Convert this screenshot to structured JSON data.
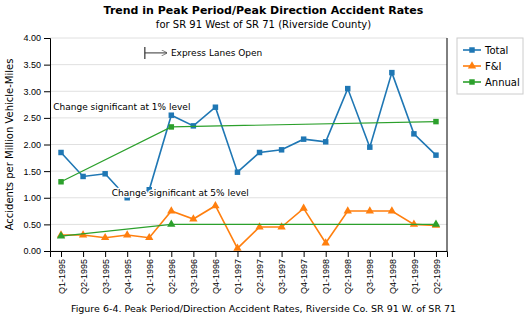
{
  "chart_data": {
    "type": "line",
    "title": "Trend in Peak Period/Peak Direction Accident Rates",
    "subtitle": "for SR 91 West of SR 71 (Riverside County)",
    "ylabel": "Accidents per Million Vehicle-Miles",
    "caption": "Figure 6-4. Peak Period/Direction Accident Rates, Riverside Co. SR 91 W. of SR 71",
    "categories": [
      "Q1-1995",
      "Q2-1995",
      "Q3-1995",
      "Q4-1995",
      "Q1-1996",
      "Q2-1996",
      "Q3-1996",
      "Q4-1996",
      "Q1-1997",
      "Q2-1997",
      "Q3-1997",
      "Q4-1997",
      "Q1-1998",
      "Q2-1998",
      "Q3-1998",
      "Q4-1998",
      "Q1-1999",
      "Q2-1999"
    ],
    "series": [
      {
        "name": "Total",
        "marker": "square",
        "line_style": "solid",
        "values": [
          1.85,
          1.4,
          1.45,
          1.0,
          1.15,
          2.55,
          2.35,
          2.7,
          1.48,
          1.85,
          1.9,
          2.1,
          2.05,
          3.05,
          1.95,
          3.35,
          2.2,
          1.8
        ]
      },
      {
        "name": "F&I",
        "marker": "triangle",
        "line_style": "solid",
        "values": [
          0.3,
          0.3,
          0.25,
          0.3,
          0.25,
          0.75,
          0.6,
          0.85,
          0.05,
          0.45,
          0.45,
          0.8,
          0.15,
          0.75,
          0.75,
          0.75,
          0.5,
          0.48
        ]
      },
      {
        "name": "Annual",
        "marker": "square",
        "line_style": "solid",
        "x": [
          "Q1-1995",
          "Q2-1996",
          "Q2-1999"
        ],
        "values": [
          1.3,
          2.33,
          2.43
        ]
      },
      {
        "name": "Annual",
        "marker": "triangle",
        "line_style": "solid",
        "x": [
          "Q1-1995",
          "Q2-1996",
          "Q2-1999"
        ],
        "values": [
          0.28,
          0.5,
          0.5
        ]
      }
    ],
    "ylim": [
      0,
      4.0
    ],
    "yticks": [
      {
        "value": 0.0,
        "label": "0.00"
      },
      {
        "value": 0.5,
        "label": "0.50"
      },
      {
        "value": 1.0,
        "label": "1.00"
      },
      {
        "value": 1.5,
        "label": "1.50"
      },
      {
        "value": 2.0,
        "label": "2.00"
      },
      {
        "value": 2.5,
        "label": "2.50"
      },
      {
        "value": 3.0,
        "label": "3.00"
      },
      {
        "value": 3.5,
        "label": "3.50"
      },
      {
        "value": 4.0,
        "label": "4.00"
      }
    ],
    "grid": true,
    "legend": "right",
    "annotations": [
      "Express Lanes Open",
      "Change significant at 1% level",
      "Change significant at 5% level"
    ]
  }
}
